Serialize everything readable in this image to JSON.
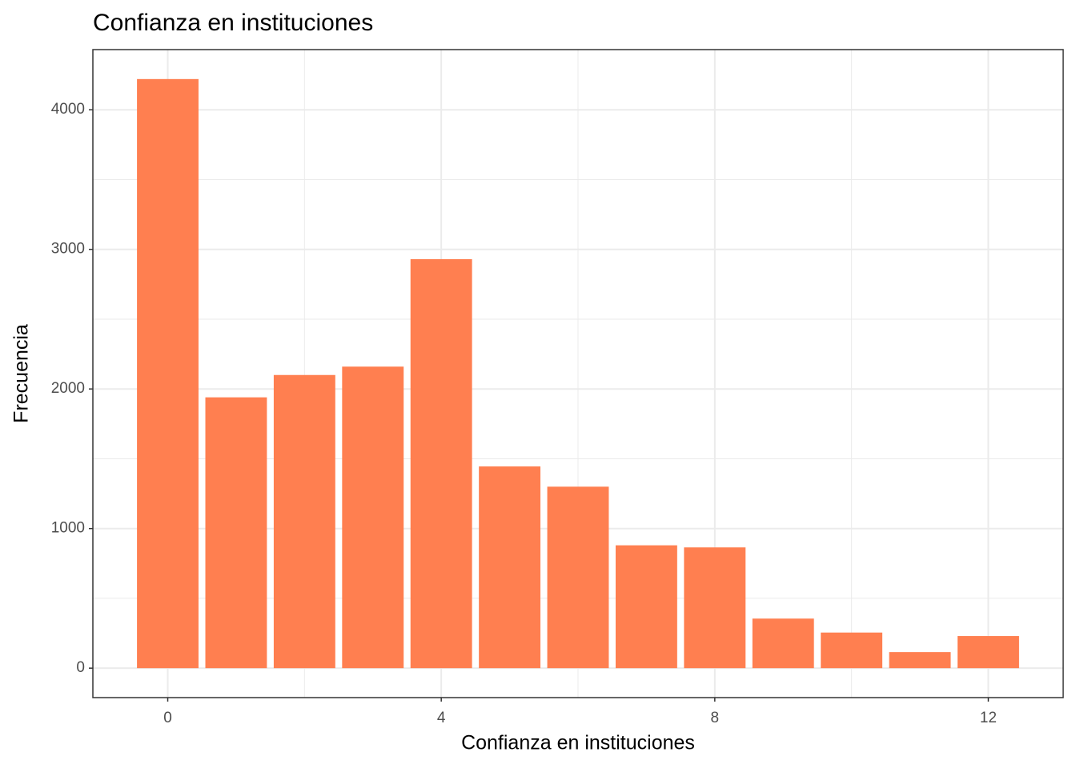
{
  "chart_data": {
    "type": "bar",
    "title": "Confianza en instituciones",
    "x_label": "Confianza en instituciones",
    "y_label": "Frecuencia",
    "x": [
      0,
      1,
      2,
      3,
      4,
      5,
      6,
      7,
      8,
      9,
      10,
      11,
      12
    ],
    "values": [
      4220,
      1940,
      2100,
      2160,
      2930,
      1445,
      1300,
      880,
      865,
      355,
      255,
      115,
      230
    ],
    "color": "#ff7f50",
    "xlim": [
      -1.095,
      13.095
    ],
    "xticks": [
      0,
      4,
      8,
      12
    ],
    "x_minor_ticks": [
      2,
      6,
      10
    ],
    "ylim": [
      -211,
      4431
    ],
    "yticks": [
      0,
      1000,
      2000,
      3000,
      4000
    ],
    "y_minor_ticks": [
      500,
      1500,
      2500,
      3500
    ],
    "grid": true
  }
}
